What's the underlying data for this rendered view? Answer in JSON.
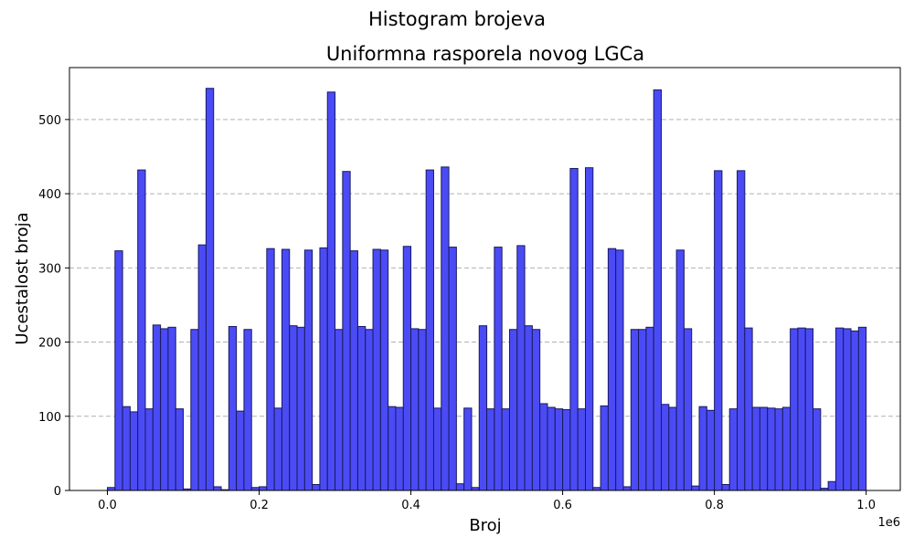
{
  "chart_data": {
    "type": "bar",
    "suptitle": "Histogram brojeva",
    "title": "Uniformna rasporela novog LGCa",
    "xlabel": "Broj",
    "ylabel": "Ucestalost broja",
    "x_offset_label": "1e6",
    "xlim": [
      -0.05,
      1.045
    ],
    "ylim": [
      0,
      570
    ],
    "x_ticks": [
      0.0,
      0.2,
      0.4,
      0.6,
      0.8,
      1.0
    ],
    "x_tick_labels": [
      "0.0",
      "0.2",
      "0.4",
      "0.6",
      "0.8",
      "1.0"
    ],
    "y_ticks": [
      0,
      100,
      200,
      300,
      400,
      500
    ],
    "y_tick_labels": [
      "0",
      "100",
      "200",
      "300",
      "400",
      "500"
    ],
    "grid": "y-dashed",
    "bar_color": "#4b4bf5",
    "bar_edge_color": "#1a1a60",
    "bin_start": 0.0,
    "bin_width": 0.01,
    "values": [
      4,
      323,
      113,
      106,
      432,
      110,
      223,
      218,
      220,
      110,
      2,
      217,
      331,
      542,
      5,
      1,
      221,
      107,
      217,
      4,
      5,
      326,
      111,
      325,
      222,
      220,
      324,
      8,
      327,
      537,
      217,
      430,
      323,
      221,
      217,
      325,
      324,
      113,
      112,
      329,
      218,
      217,
      432,
      111,
      436,
      328,
      9,
      111,
      4,
      222,
      110,
      328,
      110,
      217,
      330,
      222,
      217,
      117,
      112,
      110,
      109,
      434,
      110,
      435,
      4,
      114,
      326,
      324,
      5,
      217,
      217,
      220,
      540,
      116,
      112,
      324,
      218,
      6,
      113,
      108,
      431,
      8,
      110,
      431,
      219,
      112,
      112,
      111,
      110,
      112,
      218,
      219,
      218,
      110,
      3,
      12,
      219,
      218,
      215,
      220
    ]
  }
}
